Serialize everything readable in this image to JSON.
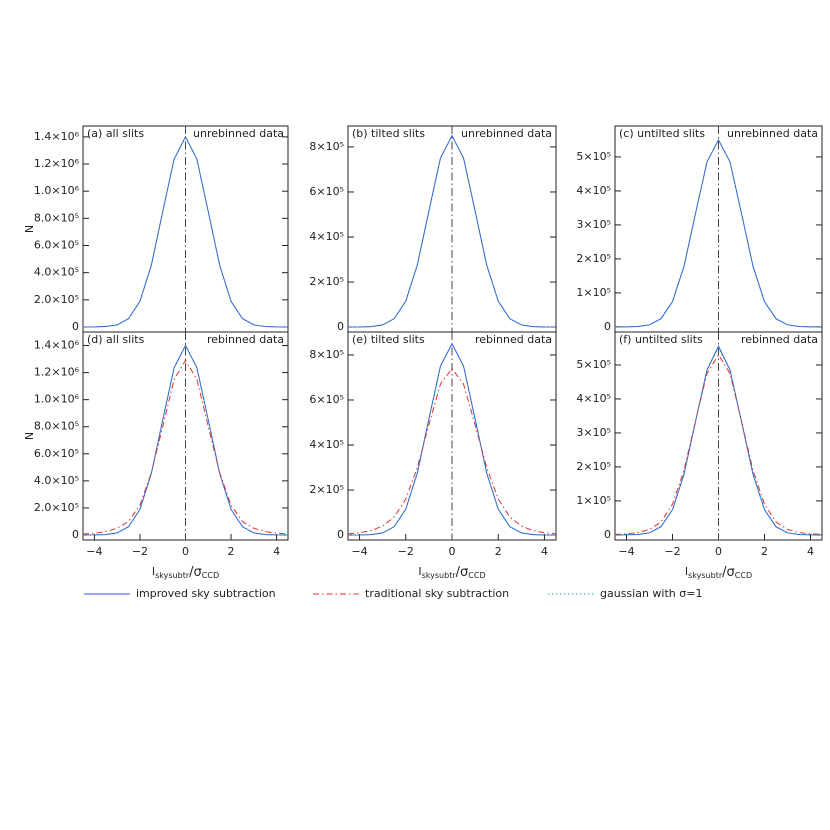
{
  "chart_data": [
    {
      "type": "line",
      "label_left": "(a) all slits",
      "label_right": "unrebinned data",
      "ylabel": "N",
      "x": [
        -4.5,
        -4,
        -3.5,
        -3,
        -2.5,
        -2,
        -1.5,
        -1,
        -0.5,
        0,
        0.5,
        1,
        1.5,
        2,
        2.5,
        3,
        3.5,
        4,
        4.5
      ],
      "xlim": [
        -4.5,
        4.5
      ],
      "ylim": [
        -37000,
        1480000
      ],
      "vline": 0,
      "yticks": [
        0,
        {
          "value": 200000,
          "label": "2.0×10⁵"
        },
        {
          "value": 400000,
          "label": "4.0×10⁵"
        },
        {
          "value": 600000,
          "label": "6.0×10⁵"
        },
        {
          "value": 800000,
          "label": "8.0×10⁵"
        },
        {
          "value": 1000000,
          "label": "1.0×10⁶"
        },
        {
          "value": 1200000,
          "label": "1.2×10⁶"
        },
        {
          "value": 1400000,
          "label": "1.4×10⁶"
        }
      ],
      "series": [
        {
          "name": "improved sky subtraction",
          "color": "#3050e0",
          "dash": "solid",
          "values": [
            56,
            469,
            3066,
            15554,
            61516,
            189476,
            454510,
            849142,
            1235500,
            1400000,
            1235500,
            849142,
            454510,
            189476,
            61516,
            15554,
            3066,
            469,
            56
          ]
        },
        {
          "name": "gaussian with σ=1",
          "color": "#30a0b0",
          "dash": "dotted",
          "values": [
            56,
            469,
            3066,
            15554,
            61516,
            189476,
            454510,
            849142,
            1235500,
            1400000,
            1235500,
            849142,
            454510,
            189476,
            61516,
            15554,
            3066,
            469,
            56
          ]
        }
      ]
    },
    {
      "type": "line",
      "label_left": "(b) tilted slits",
      "label_right": "unrebinned data",
      "x": [
        -4.5,
        -4,
        -3.5,
        -3,
        -2.5,
        -2,
        -1.5,
        -1,
        -0.5,
        0,
        0.5,
        1,
        1.5,
        2,
        2.5,
        3,
        3.5,
        4,
        4.5
      ],
      "xlim": [
        -4.5,
        4.5
      ],
      "ylim": [
        -22000,
        893000
      ],
      "vline": 0,
      "yticks": [
        0,
        {
          "value": 200000,
          "label": "2×10⁵"
        },
        {
          "value": 400000,
          "label": "4×10⁵"
        },
        {
          "value": 600000,
          "label": "6×10⁵"
        },
        {
          "value": 800000,
          "label": "8×10⁵"
        }
      ],
      "series": [
        {
          "name": "improved sky subtraction",
          "color": "#3050e0",
          "dash": "solid",
          "values": [
            34,
            285,
            1862,
            9444,
            37349,
            115039,
            275953,
            515551,
            750125,
            850000,
            750125,
            515551,
            275953,
            115039,
            37349,
            9444,
            1862,
            285,
            34
          ]
        },
        {
          "name": "gaussian with σ=1",
          "color": "#30a0b0",
          "dash": "dotted",
          "values": [
            34,
            285,
            1862,
            9444,
            37349,
            115039,
            275953,
            515551,
            750125,
            850000,
            750125,
            515551,
            275953,
            115039,
            37349,
            9444,
            1862,
            285,
            34
          ]
        }
      ]
    },
    {
      "type": "line",
      "label_left": "(c) untilted slits",
      "label_right": "unrebinned data",
      "x": [
        -4.5,
        -4,
        -3.5,
        -3,
        -2.5,
        -2,
        -1.5,
        -1,
        -0.5,
        0,
        0.5,
        1,
        1.5,
        2,
        2.5,
        3,
        3.5,
        4,
        4.5
      ],
      "xlim": [
        -4.5,
        4.5
      ],
      "ylim": [
        -15000,
        591000
      ],
      "vline": 0,
      "yticks": [
        0,
        {
          "value": 100000,
          "label": "1×10⁵"
        },
        {
          "value": 200000,
          "label": "2×10⁵"
        },
        {
          "value": 300000,
          "label": "3×10⁵"
        },
        {
          "value": 400000,
          "label": "4×10⁵"
        },
        {
          "value": 500000,
          "label": "5×10⁵"
        }
      ],
      "series": [
        {
          "name": "improved sky subtraction",
          "color": "#3050e0",
          "dash": "solid",
          "values": [
            22,
            184,
            1205,
            6111,
            24167,
            74437,
            178558,
            333592,
            485375,
            550000,
            485375,
            333592,
            178558,
            74437,
            24167,
            6111,
            1205,
            184,
            22
          ]
        },
        {
          "name": "gaussian with σ=1",
          "color": "#30a0b0",
          "dash": "dotted",
          "values": [
            22,
            184,
            1205,
            6111,
            24167,
            74437,
            178558,
            333592,
            485375,
            550000,
            485375,
            333592,
            178558,
            74437,
            24167,
            6111,
            1205,
            184,
            22
          ]
        }
      ]
    },
    {
      "type": "line",
      "label_left": "(d) all slits",
      "label_right": "rebinned data",
      "ylabel": "N",
      "xlabel": {
        "main": "I",
        "sub": "skysubtr",
        "mid": "/σ",
        "sub2": "CCD"
      },
      "x": [
        -4.5,
        -4,
        -3.5,
        -3,
        -2.5,
        -2,
        -1.5,
        -1,
        -0.5,
        0,
        0.5,
        1,
        1.5,
        2,
        2.5,
        3,
        3.5,
        4,
        4.5
      ],
      "xlim": [
        -4.5,
        4.5
      ],
      "ylim": [
        -37000,
        1500000
      ],
      "vline": 0,
      "xticks": [
        {
          "value": -4,
          "label": "−4"
        },
        {
          "value": -2,
          "label": "−2"
        },
        0,
        2,
        4
      ],
      "yticks": [
        0,
        {
          "value": 200000,
          "label": "2.0×10⁵"
        },
        {
          "value": 400000,
          "label": "4.0×10⁵"
        },
        {
          "value": 600000,
          "label": "6.0×10⁵"
        },
        {
          "value": 800000,
          "label": "8.0×10⁵"
        },
        {
          "value": 1000000,
          "label": "1.0×10⁶"
        },
        {
          "value": 1200000,
          "label": "1.2×10⁶"
        },
        {
          "value": 1400000,
          "label": "1.4×10⁶"
        }
      ],
      "series": [
        {
          "name": "improved sky subtraction",
          "color": "#3050e0",
          "dash": "solid",
          "values": [
            56,
            469,
            3066,
            15554,
            61516,
            189476,
            454510,
            849142,
            1235500,
            1400000,
            1235500,
            849142,
            454510,
            189476,
            61516,
            15554,
            3066,
            469,
            56
          ]
        },
        {
          "name": "traditional sky subtraction",
          "color": "#e03030",
          "dash": "dashdot",
          "values": [
            7000,
            13000,
            25000,
            50000,
            100000,
            220000,
            460000,
            800000,
            1150000,
            1290000,
            1150000,
            800000,
            460000,
            220000,
            100000,
            50000,
            25000,
            13000,
            7000
          ]
        },
        {
          "name": "gaussian with σ=1",
          "color": "#30a0b0",
          "dash": "dotted",
          "values": [
            56,
            469,
            3066,
            15554,
            61516,
            189476,
            454510,
            849142,
            1235500,
            1400000,
            1235500,
            849142,
            454510,
            189476,
            61516,
            15554,
            3066,
            469,
            56
          ]
        }
      ]
    },
    {
      "type": "line",
      "label_left": "(e) tilted slits",
      "label_right": "rebinned data",
      "xlabel": {
        "main": "I",
        "sub": "skysubtr",
        "mid": "/σ",
        "sub2": "CCD"
      },
      "x": [
        -4.5,
        -4,
        -3.5,
        -3,
        -2.5,
        -2,
        -1.5,
        -1,
        -0.5,
        0,
        0.5,
        1,
        1.5,
        2,
        2.5,
        3,
        3.5,
        4,
        4.5
      ],
      "xlim": [
        -4.5,
        4.5
      ],
      "ylim": [
        -22000,
        902000
      ],
      "vline": 0,
      "xticks": [
        {
          "value": -4,
          "label": "−4"
        },
        {
          "value": -2,
          "label": "−2"
        },
        0,
        2,
        4
      ],
      "yticks": [
        0,
        {
          "value": 200000,
          "label": "2×10⁵"
        },
        {
          "value": 400000,
          "label": "4×10⁵"
        },
        {
          "value": 600000,
          "label": "6×10⁵"
        },
        {
          "value": 800000,
          "label": "8×10⁵"
        }
      ],
      "series": [
        {
          "name": "improved sky subtraction",
          "color": "#3050e0",
          "dash": "solid",
          "values": [
            34,
            285,
            1862,
            9444,
            37349,
            115039,
            275953,
            515551,
            750125,
            850000,
            750125,
            515551,
            275953,
            115039,
            37349,
            9444,
            1862,
            285,
            34
          ]
        },
        {
          "name": "traditional sky subtraction",
          "color": "#e03030",
          "dash": "dashdot",
          "values": [
            5000,
            10000,
            20000,
            40000,
            80000,
            160000,
            300000,
            490000,
            670000,
            740000,
            670000,
            490000,
            300000,
            160000,
            80000,
            40000,
            20000,
            10000,
            5000
          ]
        },
        {
          "name": "gaussian with σ=1",
          "color": "#30a0b0",
          "dash": "dotted",
          "values": [
            34,
            285,
            1862,
            9444,
            37349,
            115039,
            275953,
            515551,
            750125,
            850000,
            750125,
            515551,
            275953,
            115039,
            37349,
            9444,
            1862,
            285,
            34
          ]
        }
      ]
    },
    {
      "type": "line",
      "label_left": "(f) untilted slits",
      "label_right": "rebinned data",
      "xlabel": {
        "main": "I",
        "sub": "skysubtr",
        "mid": "/σ",
        "sub2": "CCD"
      },
      "x": [
        -4.5,
        -4,
        -3.5,
        -3,
        -2.5,
        -2,
        -1.5,
        -1,
        -0.5,
        0,
        0.5,
        1,
        1.5,
        2,
        2.5,
        3,
        3.5,
        4,
        4.5
      ],
      "xlim": [
        -4.5,
        4.5
      ],
      "ylim": [
        -15000,
        597000
      ],
      "vline": 0,
      "xticks": [
        {
          "value": -4,
          "label": "−4"
        },
        {
          "value": -2,
          "label": "−2"
        },
        0,
        2,
        4
      ],
      "yticks": [
        0,
        {
          "value": 100000,
          "label": "1×10⁵"
        },
        {
          "value": 200000,
          "label": "2×10⁵"
        },
        {
          "value": 300000,
          "label": "3×10⁵"
        },
        {
          "value": 400000,
          "label": "4×10⁵"
        },
        {
          "value": 500000,
          "label": "5×10⁵"
        }
      ],
      "series": [
        {
          "name": "improved sky subtraction",
          "color": "#3050e0",
          "dash": "solid",
          "values": [
            22,
            184,
            1205,
            6111,
            24167,
            74437,
            178558,
            333592,
            485375,
            555000,
            485375,
            333592,
            178558,
            74437,
            24167,
            6111,
            1205,
            184,
            22
          ]
        },
        {
          "name": "traditional sky subtraction",
          "color": "#e03030",
          "dash": "dashdot",
          "values": [
            1500,
            3000,
            7000,
            16000,
            38000,
            90000,
            190000,
            335000,
            475000,
            530000,
            475000,
            335000,
            190000,
            90000,
            38000,
            16000,
            7000,
            3000,
            1500
          ]
        },
        {
          "name": "gaussian with σ=1",
          "color": "#30a0b0",
          "dash": "dotted",
          "values": [
            22,
            184,
            1205,
            6111,
            24167,
            74437,
            178558,
            333592,
            485375,
            550000,
            485375,
            333592,
            178558,
            74437,
            24167,
            6111,
            1205,
            184,
            22
          ]
        }
      ]
    }
  ]
}
